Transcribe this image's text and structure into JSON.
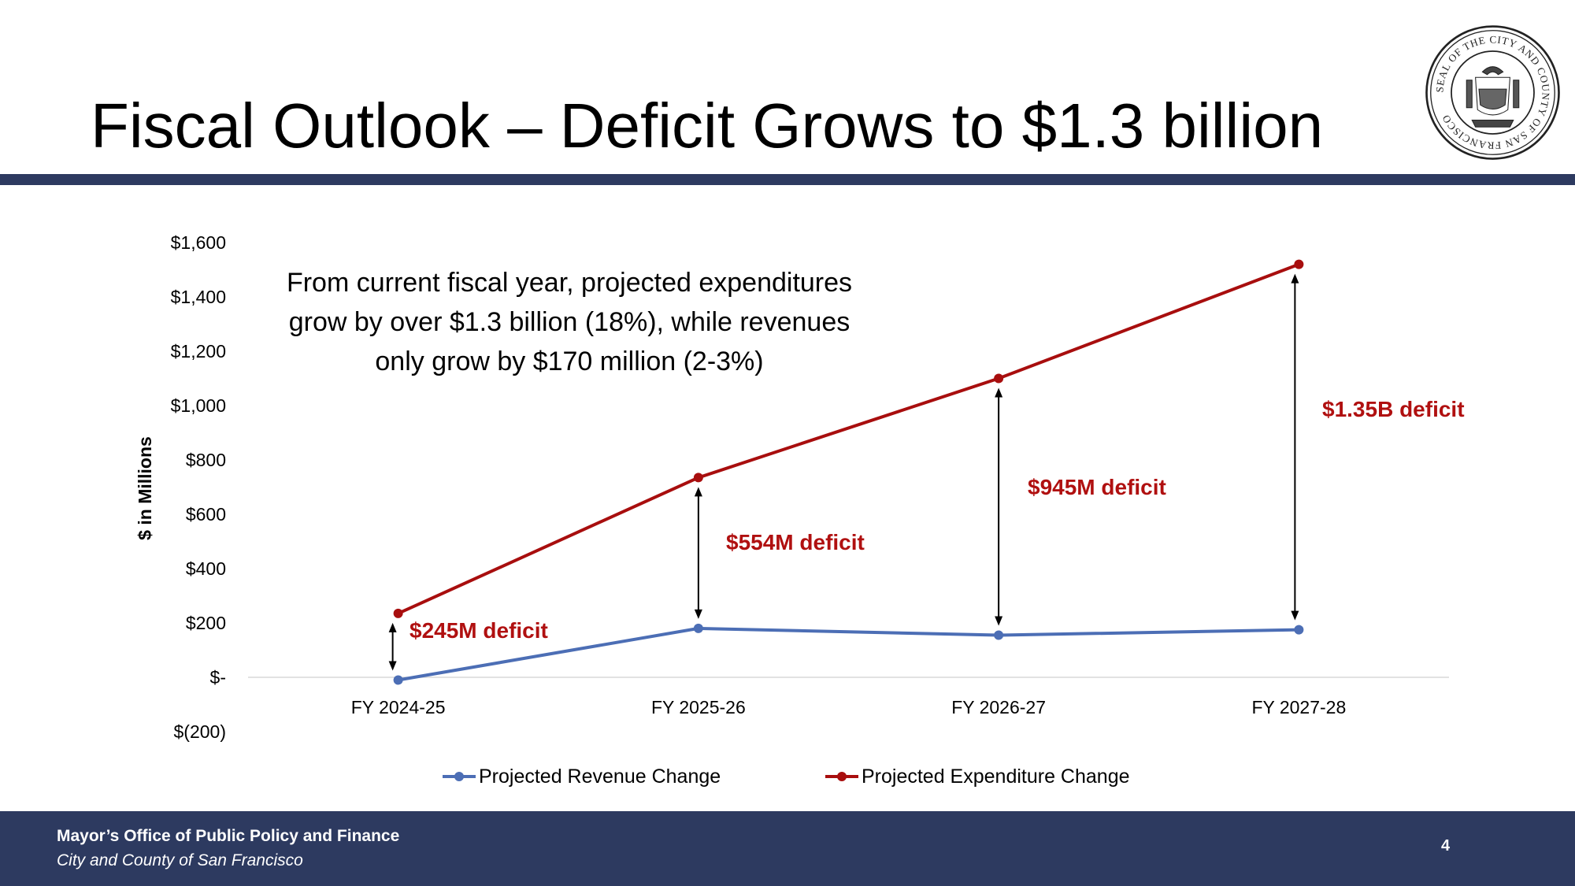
{
  "slide": {
    "title": "Fiscal Outlook – Deficit Grows to $1.3 billion",
    "page_number": "4"
  },
  "footer": {
    "organization": "Mayor’s Office of Public Policy and Finance",
    "jurisdiction": "City and County of San Francisco"
  },
  "seal": {
    "ring_text": "SEAL OF THE CITY AND COUNTY OF SAN FRANCISCO"
  },
  "colors": {
    "navy": "#2d3a60",
    "revenue": "#4c6eb5",
    "expenditure": "#a80e0e",
    "deficit_label": "#b01010"
  },
  "chart_data": {
    "type": "line",
    "title": "",
    "xlabel": "",
    "ylabel": "$ in Millions",
    "categories": [
      "FY 2024-25",
      "FY 2025-26",
      "FY 2026-27",
      "FY 2027-28"
    ],
    "ylim": [
      -200,
      1600
    ],
    "y_ticks": [
      -200,
      0,
      200,
      400,
      600,
      800,
      1000,
      1200,
      1400,
      1600
    ],
    "y_tick_labels": [
      "$(200)",
      "$-",
      "$200",
      "$400",
      "$600",
      "$800",
      "$1,000",
      "$1,200",
      "$1,400",
      "$1,600"
    ],
    "grid": false,
    "legend_position": "bottom",
    "series": [
      {
        "name": "Projected Revenue Change",
        "color": "#4c6eb5",
        "values": [
          -10,
          180,
          155,
          175
        ]
      },
      {
        "name": "Projected Expenditure Change",
        "color": "#a80e0e",
        "values": [
          235,
          735,
          1100,
          1520
        ]
      }
    ],
    "deficit_labels": [
      "$245M deficit",
      "$554M deficit",
      "$945M deficit",
      "$1.35B deficit"
    ],
    "annotation": [
      "From current fiscal year, projected expenditures",
      "grow by over $1.3 billion (18%), while revenues",
      "only grow by $170 million (2-3%)"
    ]
  }
}
